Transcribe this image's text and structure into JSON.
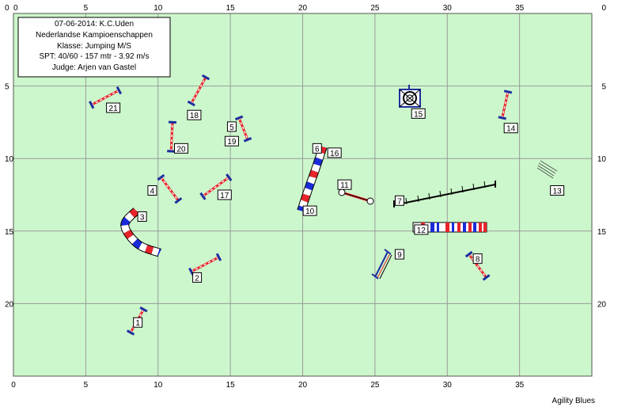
{
  "info": {
    "line1": "07-06-2014: K.C.Uden",
    "line2": "Nederlandse Kampioenschappen",
    "line3": "Klasse: Jumping M/S",
    "line4": "SPT: 40/60 - 157 mtr - 3.92 m/s",
    "line5": "Judge: Arjen van Gastel"
  },
  "credit": "Agility Blues",
  "axes": {
    "x_ticks": [
      "0",
      "5",
      "10",
      "15",
      "20",
      "25",
      "30",
      "35"
    ],
    "y_ticks": [
      "0",
      "5",
      "10",
      "15",
      "20"
    ]
  },
  "colors": {
    "field": "#ccf7cc",
    "grid": "#9a9a9a",
    "bar_red": "#e8242a",
    "bar_blue": "#1a2bd9",
    "post_blue": "#1f2f9e",
    "post_black": "#000000"
  },
  "chart_data": {
    "type": "course-map",
    "xlim": [
      0,
      40
    ],
    "ylim": [
      0,
      25
    ],
    "grid": true,
    "numbers": [
      {
        "text": "1",
        "x": 8.6,
        "y": 21.3
      },
      {
        "text": "2",
        "x": 12.7,
        "y": 18.2
      },
      {
        "text": "3",
        "x": 8.9,
        "y": 14.0
      },
      {
        "text": "4",
        "x": 9.6,
        "y": 12.2
      },
      {
        "text": "5",
        "x": 15.1,
        "y": 7.8
      },
      {
        "text": "6",
        "x": 21.0,
        "y": 9.3
      },
      {
        "text": "7",
        "x": 26.7,
        "y": 12.9
      },
      {
        "text": "8",
        "x": 32.1,
        "y": 16.9
      },
      {
        "text": "9",
        "x": 26.7,
        "y": 16.6
      },
      {
        "text": "10",
        "x": 20.5,
        "y": 13.6
      },
      {
        "text": "11",
        "x": 22.9,
        "y": 11.8
      },
      {
        "text": "12",
        "x": 28.2,
        "y": 14.9
      },
      {
        "text": "13",
        "x": 37.6,
        "y": 12.2
      },
      {
        "text": "14",
        "x": 34.4,
        "y": 7.9
      },
      {
        "text": "15",
        "x": 28.0,
        "y": 6.9
      },
      {
        "text": "16",
        "x": 22.2,
        "y": 9.6
      },
      {
        "text": "17",
        "x": 14.6,
        "y": 12.5
      },
      {
        "text": "18",
        "x": 12.5,
        "y": 7.0
      },
      {
        "text": "19",
        "x": 15.1,
        "y": 8.8
      },
      {
        "text": "20",
        "x": 11.6,
        "y": 9.3
      },
      {
        "text": "21",
        "x": 6.9,
        "y": 6.5
      }
    ],
    "jumps": [
      {
        "id": "1",
        "x1": 8.1,
        "y1": 22.0,
        "x2": 9.0,
        "y2": 20.4
      },
      {
        "id": "2",
        "x1": 12.3,
        "y1": 17.8,
        "x2": 14.2,
        "y2": 16.8
      },
      {
        "id": "4",
        "x1": 10.2,
        "y1": 11.3,
        "x2": 11.4,
        "y2": 12.9
      },
      {
        "id": "5-19",
        "x1": 15.6,
        "y1": 7.2,
        "x2": 16.2,
        "y2": 8.7
      },
      {
        "id": "8",
        "x1": 31.5,
        "y1": 16.6,
        "x2": 32.7,
        "y2": 18.2
      },
      {
        "id": "14",
        "x1": 33.8,
        "y1": 7.2,
        "x2": 34.2,
        "y2": 5.4
      },
      {
        "id": "17",
        "x1": 13.1,
        "y1": 12.6,
        "x2": 14.9,
        "y2": 11.3
      },
      {
        "id": "18",
        "x1": 12.3,
        "y1": 6.2,
        "x2": 13.3,
        "y2": 4.4
      },
      {
        "id": "20",
        "x1": 10.9,
        "y1": 9.5,
        "x2": 11.0,
        "y2": 7.5
      },
      {
        "id": "21",
        "x1": 5.4,
        "y1": 6.3,
        "x2": 7.3,
        "y2": 5.3
      }
    ],
    "tunnels": [
      {
        "id": "3",
        "points": [
          [
            8.5,
            13.6
          ],
          [
            7.7,
            14.6
          ],
          [
            8.6,
            15.9
          ],
          [
            10.1,
            16.5
          ]
        ]
      },
      {
        "id": "6-10-16",
        "points": [
          [
            21.4,
            9.2
          ],
          [
            20.9,
            10.7
          ],
          [
            20.4,
            12.1
          ],
          [
            19.9,
            13.6
          ]
        ]
      }
    ]
  }
}
